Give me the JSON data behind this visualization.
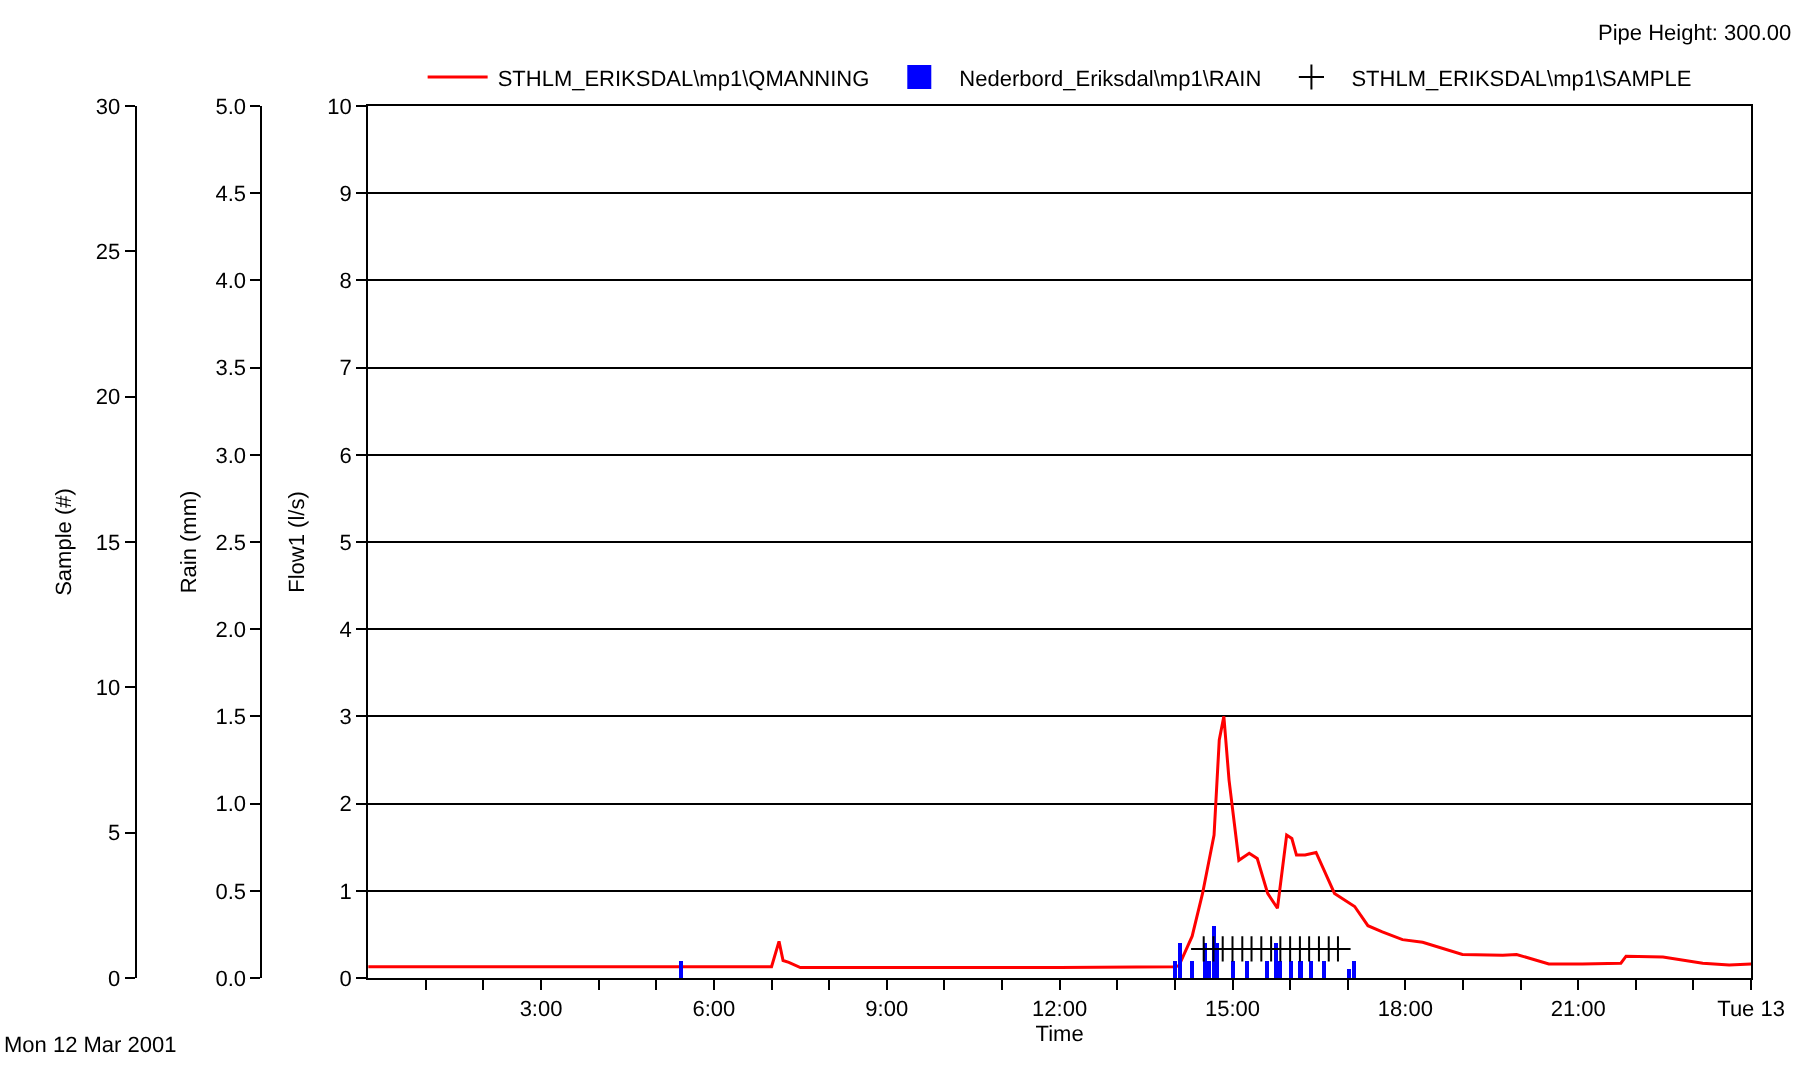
{
  "chart_data": {
    "type": "line",
    "xlabel": "Time",
    "ylabel": "Flow1 (l/s)",
    "y2label": "Sample (#)",
    "y3label": "Rain (mm)",
    "annotations": [
      "Pipe Height: 300.00",
      "Mon 12 Mar 2001"
    ],
    "xlim": [
      0,
      24
    ],
    "xticks": [
      {
        "value": 1,
        "label": null
      },
      {
        "value": 2,
        "label": null
      },
      {
        "value": 3,
        "label": "3:00"
      },
      {
        "value": 4,
        "label": null
      },
      {
        "value": 5,
        "label": null
      },
      {
        "value": 6,
        "label": "6:00"
      },
      {
        "value": 7,
        "label": null
      },
      {
        "value": 8,
        "label": null
      },
      {
        "value": 9,
        "label": "9:00"
      },
      {
        "value": 10,
        "label": null
      },
      {
        "value": 11,
        "label": null
      },
      {
        "value": 12,
        "label": "12:00"
      },
      {
        "value": 13,
        "label": null
      },
      {
        "value": 14,
        "label": null
      },
      {
        "value": 15,
        "label": "15:00"
      },
      {
        "value": 16,
        "label": null
      },
      {
        "value": 17,
        "label": null
      },
      {
        "value": 18,
        "label": "18:00"
      },
      {
        "value": 19,
        "label": null
      },
      {
        "value": 20,
        "label": null
      },
      {
        "value": 21,
        "label": "21:00"
      },
      {
        "value": 22,
        "label": null
      },
      {
        "value": 23,
        "label": null
      },
      {
        "value": 24,
        "label": "Tue 13"
      }
    ],
    "ylim": [
      0,
      10
    ],
    "yticks": [
      0,
      1,
      2,
      3,
      4,
      5,
      6,
      7,
      8,
      9,
      10
    ],
    "y3lim": [
      0,
      5
    ],
    "y3ticks": [
      {
        "value": 0,
        "label": "0.0"
      },
      0.5,
      {
        "value": 1,
        "label": "1.0"
      },
      1.5,
      {
        "value": 2,
        "label": "2.0"
      },
      2.5,
      {
        "value": 3,
        "label": "3.0"
      },
      3.5,
      {
        "value": 4,
        "label": "4.0"
      },
      4.5,
      {
        "value": 5,
        "label": "5.0"
      }
    ],
    "y2lim": [
      0,
      30
    ],
    "y2ticks": [
      0,
      5,
      10,
      15,
      20,
      25,
      30
    ],
    "grid": "y",
    "legend": "top",
    "series": [
      {
        "name": "STHLM_ERIKSDAL\\mp1\\QMANNING",
        "color": "#ff0000",
        "axis": "y",
        "line_style": "solid",
        "marker": "none",
        "x": [
          0,
          3,
          6,
          7.0,
          7.13,
          7.2,
          7.3,
          7.5,
          10,
          12,
          14.0,
          14.07,
          14.3,
          14.48,
          14.68,
          14.77,
          14.85,
          14.94,
          15.11,
          15.29,
          15.43,
          15.61,
          15.78,
          15.94,
          16.03,
          16.11,
          16.26,
          16.45,
          16.77,
          17.12,
          17.35,
          17.6,
          17.95,
          18.3,
          18.99,
          19.69,
          19.93,
          20.49,
          21.07,
          21.74,
          21.83,
          22.47,
          23.16,
          23.62,
          24
        ],
        "values": [
          0.13,
          0.13,
          0.13,
          0.13,
          0.42,
          0.2,
          0.18,
          0.12,
          0.12,
          0.12,
          0.13,
          0.14,
          0.48,
          0.97,
          1.64,
          2.73,
          3.0,
          2.27,
          1.35,
          1.43,
          1.37,
          0.97,
          0.8,
          1.64,
          1.6,
          1.41,
          1.41,
          1.44,
          0.97,
          0.82,
          0.6,
          0.53,
          0.44,
          0.41,
          0.27,
          0.26,
          0.27,
          0.16,
          0.16,
          0.17,
          0.25,
          0.24,
          0.17,
          0.15,
          0.16
        ]
      },
      {
        "name": "Nederbord_Eriksdal\\mp1\\RAIN",
        "type": "bar",
        "color": "#0000ff",
        "axis": "y3",
        "x": [
          5.43,
          14.0,
          14.09,
          14.3,
          14.53,
          14.6,
          14.68,
          14.73,
          15.01,
          15.25,
          15.6,
          15.75,
          15.83,
          16.01,
          16.18,
          16.36,
          16.59,
          17.02,
          17.11
        ],
        "values": [
          0.1,
          0.1,
          0.2,
          0.1,
          0.2,
          0.1,
          0.3,
          0.2,
          0.1,
          0.1,
          0.1,
          0.2,
          0.1,
          0.1,
          0.1,
          0.1,
          0.1,
          0.05,
          0.1
        ]
      },
      {
        "name": "STHLM_ERIKSDAL\\mp1\\SAMPLE",
        "type": "scatter",
        "color": "#000000",
        "axis": "y2",
        "marker": "cross",
        "x": [
          14.5,
          14.67,
          14.83,
          15,
          15.17,
          15.33,
          15.5,
          15.67,
          15.83,
          16,
          16.17,
          16.33,
          16.5,
          16.67,
          16.83
        ],
        "values": [
          1,
          1,
          1,
          1,
          1,
          1,
          1,
          1,
          1,
          1,
          1,
          1,
          1,
          1,
          1
        ]
      }
    ]
  }
}
